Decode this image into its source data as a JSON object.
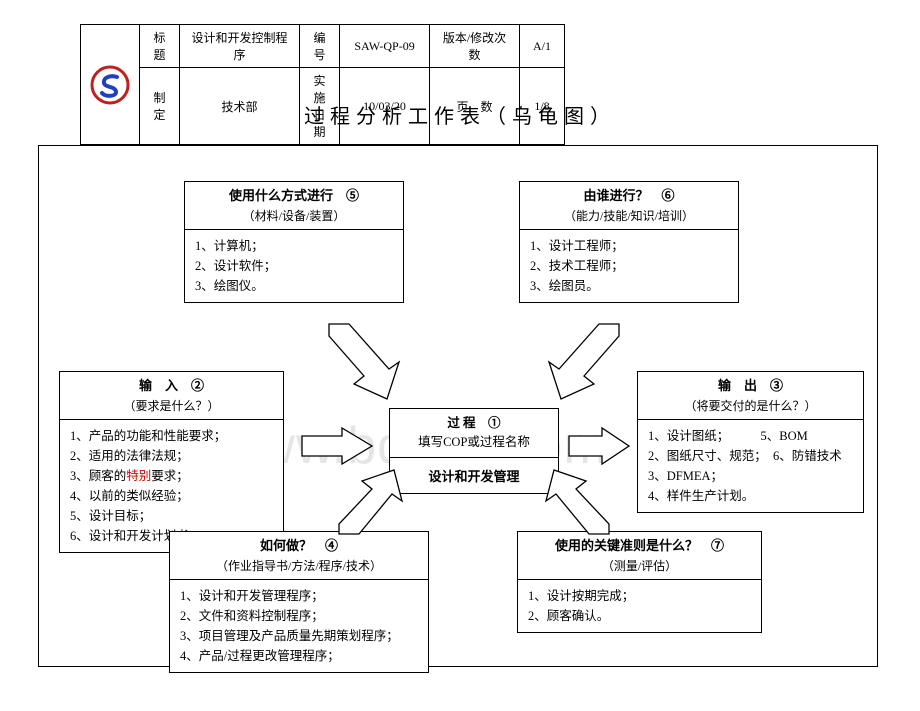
{
  "header": {
    "labels": {
      "title_label": "标题",
      "code_label": "编号",
      "version_label": "版本/修改次数",
      "made_by_label": "制定",
      "date_label": "实施日期",
      "page_label": "页　数"
    },
    "values": {
      "title": "设计和开发控制程序",
      "code": "SAW-QP-09",
      "version": "A/1",
      "made_by": "技术部",
      "date": "10/03/20",
      "page": "1/8"
    }
  },
  "page_title": "过程分析工作表（乌龟图）",
  "watermark": "www.bdocx.com",
  "center": {
    "label": "过 程　①",
    "sub": "填写COP或过程名称",
    "name": "设计和开发管理"
  },
  "boxes": {
    "input": {
      "title": "输　入　②",
      "sub": "（要求是什么？）",
      "items": [
        "1、产品的功能和性能要求；",
        "2、适用的法律法规；",
        "3、顾客的<span class=\"red\">特别</span>要求；",
        "4、以前的类似经验；",
        "5、设计目标；",
        "6、设计和开发计划书。"
      ]
    },
    "output": {
      "title": "输　出　③",
      "sub": "（将要交付的是什么？）",
      "items": [
        "1、设计图纸；　　　5、BOM",
        "2、图纸尺寸、规范；　6、防错技术",
        "3、DFMEA；",
        "4、样件生产计划。"
      ]
    },
    "how": {
      "title": "如何做？　④",
      "sub": "（作业指导书/方法/程序/技术）",
      "items": [
        "1、设计和开发管理程序；",
        "2、文件和资料控制程序；",
        "3、项目管理及产品质量先期策划程序；",
        "4、产品/过程更改管理程序；"
      ]
    },
    "method": {
      "title": "使用什么方式进行　⑤",
      "sub": "（材料/设备/装置）",
      "items": [
        "1、计算机；",
        "2、设计软件；",
        "3、绘图仪。"
      ]
    },
    "who": {
      "title": "由谁进行？　⑥",
      "sub": "（能力/技能/知识/培训）",
      "items": [
        "1、设计工程师；",
        "2、技术工程师；",
        "3、绘图员。"
      ]
    },
    "criteria": {
      "title": "使用的关键准则是什么？　⑦",
      "sub": "（测量/评估）",
      "items": [
        "1、设计按期完成；",
        "2、顾客确认。"
      ]
    }
  },
  "style": {
    "arrow_fill": "#ffffff",
    "arrow_stroke": "#000000",
    "border_color": "#000000",
    "logo_outer": "#c02020",
    "logo_inner": "#2040c0"
  }
}
